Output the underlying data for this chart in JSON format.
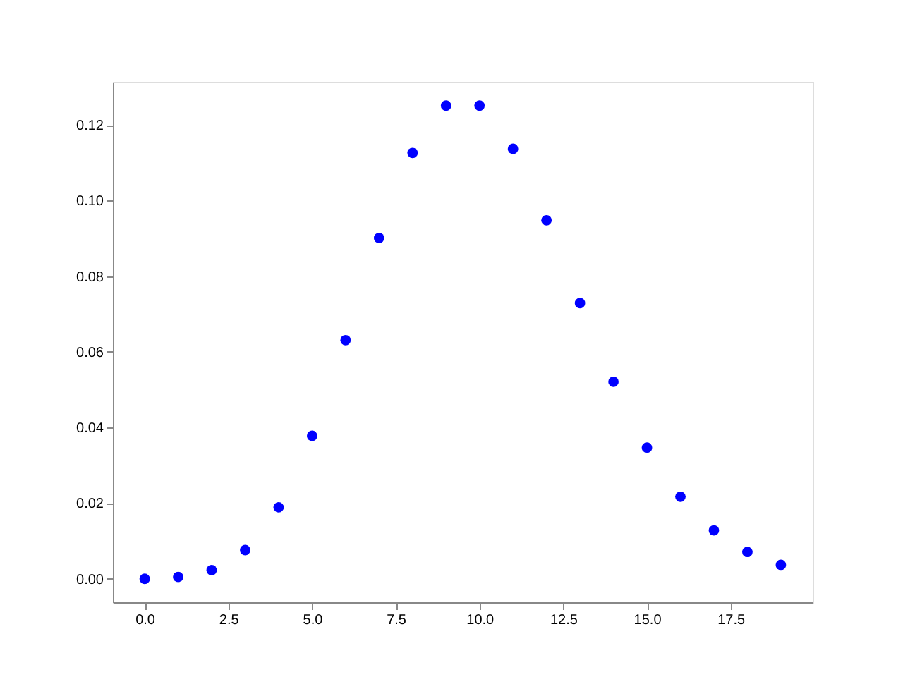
{
  "chart_data": {
    "type": "scatter",
    "x": [
      0,
      1,
      2,
      3,
      4,
      5,
      6,
      7,
      8,
      9,
      10,
      11,
      12,
      13,
      14,
      15,
      16,
      17,
      18,
      19
    ],
    "series": [
      {
        "color": "#0000ff",
        "values": [
          0.0,
          0.0005,
          0.0023,
          0.0076,
          0.0189,
          0.0378,
          0.0631,
          0.0901,
          0.1126,
          0.1251,
          0.1251,
          0.1137,
          0.0948,
          0.0729,
          0.0521,
          0.0347,
          0.0217,
          0.0128,
          0.0071,
          0.0037
        ]
      }
    ],
    "xlim": [
      -0.95,
      19.95
    ],
    "xticks": [
      {
        "value": 0,
        "label": "0.0"
      },
      {
        "value": 2.5,
        "label": "2.5"
      },
      {
        "value": 5,
        "label": "5.0"
      },
      {
        "value": 7.5,
        "label": "7.5"
      },
      {
        "value": 10,
        "label": "10.0"
      },
      {
        "value": 12.5,
        "label": "12.5"
      },
      {
        "value": 15,
        "label": "15.0"
      },
      {
        "value": 17.5,
        "label": "17.5"
      }
    ],
    "ylim": [
      -0.0062,
      0.1314
    ],
    "yticks": [
      {
        "value": 0,
        "label": "0.00"
      },
      {
        "value": 0.02,
        "label": "0.02"
      },
      {
        "value": 0.04,
        "label": "0.04"
      },
      {
        "value": 0.06,
        "label": "0.06"
      },
      {
        "value": 0.08,
        "label": "0.08"
      },
      {
        "value": 0.1,
        "label": "0.10"
      },
      {
        "value": 0.12,
        "label": "0.12"
      }
    ],
    "marker": "circle",
    "grid": false
  }
}
